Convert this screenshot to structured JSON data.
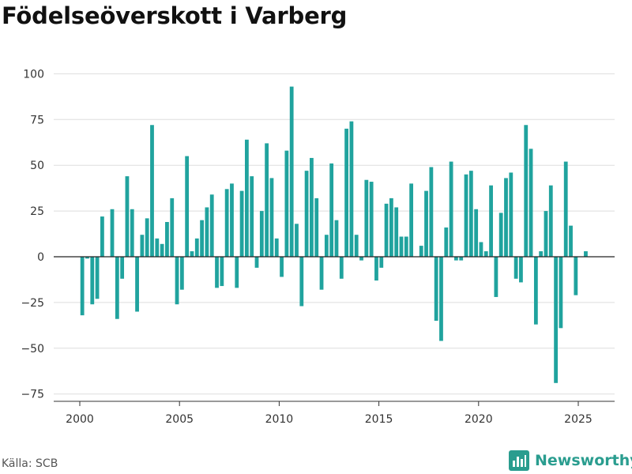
{
  "title": "Födelseöverskott i Varberg",
  "source": "Källa: SCB",
  "brand": {
    "name": "Newsworthy",
    "icon": "bar-chart-logo-icon",
    "color": "#2a9d8f"
  },
  "colors": {
    "bar": "#20a39e",
    "zero_line": "#222222",
    "grid": "#dddddd",
    "axis": "#333333"
  },
  "chart_data": {
    "type": "bar",
    "title": "Födelseöverskott i Varberg",
    "xlabel": "",
    "ylabel": "",
    "ylim": [
      -80,
      100
    ],
    "yticks": [
      100,
      75,
      50,
      25,
      0,
      -25,
      -50,
      -75
    ],
    "ytick_labels": [
      "100",
      "75",
      "50",
      "25",
      "0",
      "−25",
      "−50",
      "−75"
    ],
    "xticks": [
      2000,
      2005,
      2010,
      2015,
      2020,
      2025
    ],
    "xtick_labels": [
      "2000",
      "2005",
      "2010",
      "2015",
      "2020",
      "2025"
    ],
    "x_unit": "month",
    "x_start": "2000-01",
    "frequency": "quarterly",
    "grid": true,
    "legend": "none",
    "values": [
      -32,
      -1,
      -26,
      -23,
      22,
      0,
      26,
      -34,
      -12,
      44,
      26,
      -30,
      12,
      21,
      72,
      10,
      7,
      19,
      32,
      -26,
      -18,
      55,
      3,
      10,
      20,
      27,
      34,
      -17,
      -16,
      37,
      40,
      -17,
      36,
      64,
      44,
      -6,
      25,
      62,
      43,
      10,
      -11,
      58,
      93,
      18,
      -27,
      47,
      54,
      32,
      -18,
      12,
      51,
      20,
      -12,
      70,
      74,
      12,
      -2,
      42,
      41,
      -13,
      -6,
      29,
      32,
      27,
      11,
      11,
      40,
      0,
      6,
      36,
      49,
      -35,
      -46,
      16,
      52,
      -2,
      -2,
      45,
      47,
      26,
      8,
      3,
      39,
      -22,
      24,
      43,
      46,
      -12,
      -14,
      72,
      59,
      -37,
      3,
      25,
      39,
      -69,
      -39,
      52,
      17,
      -21,
      0,
      3
    ]
  }
}
